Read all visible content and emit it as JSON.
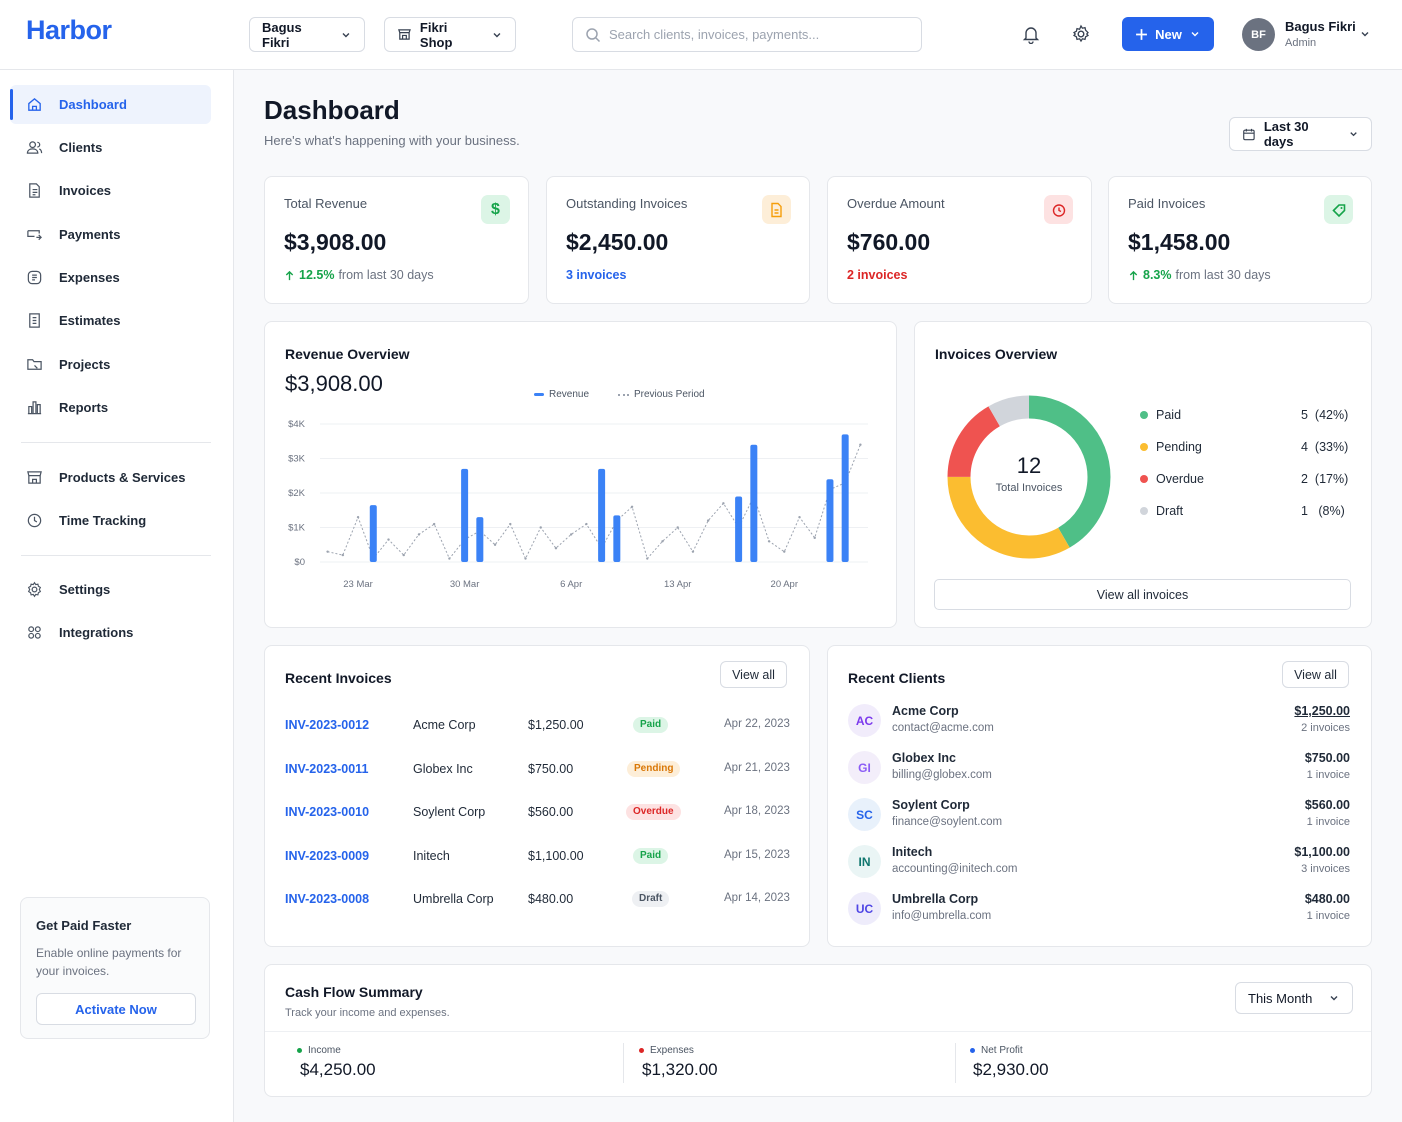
{
  "app": {
    "name": "Harbor"
  },
  "header": {
    "user_select": "Bagus Fikri",
    "shop_select": "Fikri Shop",
    "search_placeholder": "Search clients, invoices, payments...",
    "new_label": "New",
    "user": {
      "initials": "BF",
      "name": "Bagus Fikri",
      "role": "Admin"
    }
  },
  "sidebar": {
    "items": [
      {
        "label": "Dashboard",
        "icon": "home-icon",
        "active": true
      },
      {
        "label": "Clients",
        "icon": "users-icon"
      },
      {
        "label": "Invoices",
        "icon": "file-icon"
      },
      {
        "label": "Payments",
        "icon": "payments-icon"
      },
      {
        "label": "Expenses",
        "icon": "receipt-icon"
      },
      {
        "label": "Estimates",
        "icon": "document-icon"
      },
      {
        "label": "Projects",
        "icon": "folder-icon"
      },
      {
        "label": "Reports",
        "icon": "bar-chart-icon"
      },
      {
        "label": "Products & Services",
        "icon": "store-icon"
      },
      {
        "label": "Time Tracking",
        "icon": "clock-icon"
      },
      {
        "label": "Settings",
        "icon": "gear-icon"
      },
      {
        "label": "Integrations",
        "icon": "grid-icon"
      }
    ],
    "promo": {
      "title": "Get Paid Faster",
      "text": "Enable online payments for your invoices.",
      "button": "Activate Now"
    }
  },
  "page": {
    "title": "Dashboard",
    "subtitle": "Here's what's happening with your business.",
    "range": "Last 30 days"
  },
  "stats": [
    {
      "label": "Total Revenue",
      "value": "$3,908.00",
      "delta": "12.5%",
      "foot": "from last 30 days",
      "icon": "dollar-icon",
      "color": "#16a34a"
    },
    {
      "label": "Outstanding Invoices",
      "value": "$2,450.00",
      "link": "3 invoices",
      "icon": "invoice-icon",
      "color": "#f59e0b"
    },
    {
      "label": "Overdue Amount",
      "value": "$760.00",
      "link": "2 invoices",
      "icon": "alarm-icon",
      "color": "#dc2626"
    },
    {
      "label": "Paid Invoices",
      "value": "$1,458.00",
      "delta": "8.3%",
      "foot": "from last 30 days",
      "icon": "tag-icon",
      "color": "#16a34a"
    }
  ],
  "revenue": {
    "title": "Revenue Overview",
    "value": "$3,908.00",
    "legend": {
      "current": "Revenue",
      "previous": "Previous Period"
    }
  },
  "chart_data": {
    "type": "bar",
    "title": "Revenue Overview",
    "y_ticks": [
      "$4K",
      "$3K",
      "$2K",
      "$1K",
      "$0"
    ],
    "ylim": [
      0,
      4000
    ],
    "x_ticks": [
      "23 Mar",
      "30 Mar",
      "6 Apr",
      "13 Apr",
      "20 Apr"
    ],
    "days": [
      "21 Mar",
      "22 Mar",
      "23 Mar",
      "24 Mar",
      "25 Mar",
      "26 Mar",
      "27 Mar",
      "28 Mar",
      "29 Mar",
      "30 Mar",
      "31 Mar",
      "1 Apr",
      "2 Apr",
      "3 Apr",
      "4 Apr",
      "5 Apr",
      "6 Apr",
      "7 Apr",
      "8 Apr",
      "9 Apr",
      "10 Apr",
      "11 Apr",
      "12 Apr",
      "13 Apr",
      "14 Apr",
      "15 Apr",
      "16 Apr",
      "17 Apr",
      "18 Apr",
      "19 Apr",
      "20 Apr",
      "21 Apr",
      "22 Apr",
      "23 Apr",
      "24 Apr",
      "25 Apr"
    ],
    "series": [
      {
        "name": "Revenue",
        "type": "bar",
        "color": "#3b82f6",
        "values": [
          0,
          0,
          0,
          1650,
          0,
          0,
          0,
          0,
          0,
          2700,
          1300,
          0,
          0,
          0,
          0,
          0,
          0,
          0,
          2700,
          1350,
          0,
          0,
          0,
          0,
          0,
          0,
          0,
          1900,
          3400,
          0,
          0,
          0,
          0,
          2400,
          3700,
          0
        ]
      },
      {
        "name": "Previous Period",
        "type": "line",
        "color": "#9ca3af",
        "values": [
          300,
          200,
          1300,
          100,
          650,
          200,
          800,
          1100,
          100,
          650,
          900,
          500,
          1100,
          100,
          1000,
          400,
          800,
          1100,
          400,
          1200,
          1600,
          100,
          600,
          1000,
          300,
          1200,
          1700,
          1000,
          1900,
          600,
          300,
          1300,
          700,
          2100,
          2300,
          3400
        ]
      }
    ]
  },
  "invoices_overview": {
    "title": "Invoices Overview",
    "total": "12",
    "total_label": "Total Invoices",
    "segments": [
      {
        "label": "Paid",
        "count": "5",
        "pct": "(42%)",
        "value": 5,
        "color": "#4fbf87"
      },
      {
        "label": "Pending",
        "count": "4",
        "pct": "(33%)",
        "value": 4,
        "color": "#fbbd30"
      },
      {
        "label": "Overdue",
        "count": "2",
        "pct": "(17%)",
        "value": 2,
        "color": "#ef5350"
      },
      {
        "label": "Draft",
        "count": "1",
        "pct": "(8%)",
        "value": 1,
        "color": "#d1d5db"
      }
    ],
    "view_all": "View all invoices"
  },
  "recent_invoices": {
    "title": "Recent Invoices",
    "view_all": "View all",
    "rows": [
      {
        "id": "INV-2023-0012",
        "client": "Acme Corp",
        "amount": "$1,250.00",
        "status": "Paid",
        "date": "Apr 22, 2023"
      },
      {
        "id": "INV-2023-0011",
        "client": "Globex Inc",
        "amount": "$750.00",
        "status": "Pending",
        "date": "Apr 21, 2023"
      },
      {
        "id": "INV-2023-0010",
        "client": "Soylent Corp",
        "amount": "$560.00",
        "status": "Overdue",
        "date": "Apr 18, 2023"
      },
      {
        "id": "INV-2023-0009",
        "client": "Initech",
        "amount": "$1,100.00",
        "status": "Paid",
        "date": "Apr 15, 2023"
      },
      {
        "id": "INV-2023-0008",
        "client": "Umbrella Corp",
        "amount": "$480.00",
        "status": "Draft",
        "date": "Apr 14, 2023"
      }
    ]
  },
  "recent_clients": {
    "title": "Recent Clients",
    "view_all": "View all",
    "rows": [
      {
        "initials": "AC",
        "name": "Acme Corp",
        "email": "contact@acme.com",
        "amount": "$1,250.00",
        "count": "2 invoices",
        "bg": "#f1ecfb",
        "fg": "#7c3aed"
      },
      {
        "initials": "GI",
        "name": "Globex Inc",
        "email": "billing@globex.com",
        "amount": "$750.00",
        "count": "1 invoice",
        "bg": "#f3eefa",
        "fg": "#8b5cf6"
      },
      {
        "initials": "SC",
        "name": "Soylent Corp",
        "email": "finance@soylent.com",
        "amount": "$560.00",
        "count": "1 invoice",
        "bg": "#e8f1fb",
        "fg": "#2563eb"
      },
      {
        "initials": "IN",
        "name": "Initech",
        "email": "accounting@initech.com",
        "amount": "$1,100.00",
        "count": "3 invoices",
        "bg": "#eaf5f5",
        "fg": "#0f766e"
      },
      {
        "initials": "UC",
        "name": "Umbrella Corp",
        "email": "info@umbrella.com",
        "amount": "$480.00",
        "count": "1 invoice",
        "bg": "#eeecfb",
        "fg": "#4f46e5"
      }
    ]
  },
  "cash_flow": {
    "title": "Cash Flow Summary",
    "subtitle": "Track your income and expenses.",
    "period": "This Month",
    "items": [
      {
        "label": "Income",
        "value": "$4,250.00",
        "color": "#16a34a"
      },
      {
        "label": "Expenses",
        "value": "$1,320.00",
        "color": "#dc2626"
      },
      {
        "label": "Net Profit",
        "value": "$2,930.00",
        "color": "#2563eb"
      }
    ]
  }
}
